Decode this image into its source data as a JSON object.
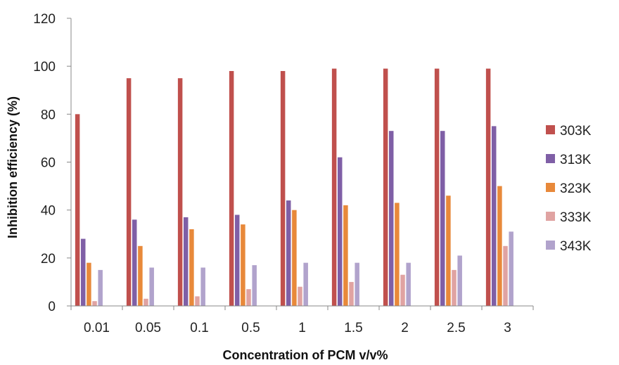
{
  "chart_data": {
    "type": "bar",
    "title": "",
    "xlabel": "Concentration of PCM v/v%",
    "ylabel": "Inhibition efficiency (%)",
    "ylim": [
      0,
      120
    ],
    "yticks": [
      0,
      20,
      40,
      60,
      80,
      100,
      120
    ],
    "grid": false,
    "legend_position": "right",
    "categories": [
      "0.01",
      "0.05",
      "0.1",
      "0.5",
      "1",
      "1.5",
      "2",
      "2.5",
      "3"
    ],
    "series": [
      {
        "name": "303K",
        "color": "#c0504d",
        "values": [
          80,
          95,
          95,
          98,
          98,
          99,
          99,
          99,
          99
        ]
      },
      {
        "name": "313K",
        "color": "#7f5fa6",
        "values": [
          28,
          36,
          37,
          38,
          44,
          62,
          73,
          73,
          75
        ]
      },
      {
        "name": "323K",
        "color": "#e8893a",
        "values": [
          18,
          25,
          32,
          34,
          40,
          42,
          43,
          46,
          50
        ]
      },
      {
        "name": "333K",
        "color": "#e0a3a2",
        "values": [
          2,
          3,
          4,
          7,
          8,
          10,
          13,
          15,
          25
        ]
      },
      {
        "name": "343K",
        "color": "#b1a3cc",
        "values": [
          15,
          16,
          16,
          17,
          18,
          18,
          18,
          21,
          31
        ]
      }
    ]
  }
}
